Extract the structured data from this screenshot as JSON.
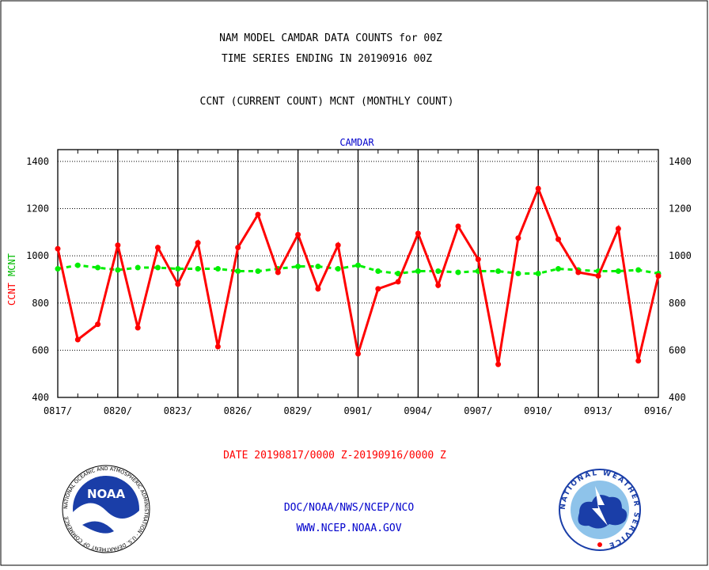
{
  "titles": {
    "line1": "NAM MODEL CAMDAR DATA COUNTS for 00Z",
    "line2": "TIME SERIES ENDING IN 20190916 00Z",
    "line3": "CCNT (CURRENT COUNT) MCNT (MONTHLY COUNT)"
  },
  "footer": {
    "date_range": "DATE 20190817/0000 Z-20190916/0000 Z",
    "org": "DOC/NOAA/NWS/NCEP/NCO",
    "url": "WWW.NCEP.NOAA.GOV"
  },
  "logos": {
    "left": "noaa-logo",
    "left_text": "NOAA",
    "left_ring_text": "NATIONAL OCEANIC AND ATMOSPHERIC ADMINISTRATION · U.S. DEPARTMENT OF COMMERCE",
    "right": "nws-logo",
    "right_ring_text": "NATIONAL WEATHER SERVICE"
  },
  "chart_data": {
    "type": "line",
    "title": "CAMDAR",
    "xlabel": "",
    "ylabel_left": [
      "CCNT",
      "MCNT"
    ],
    "ylim": [
      400,
      1450
    ],
    "y_ticks": [
      400,
      600,
      800,
      1000,
      1200,
      1400
    ],
    "x_tick_labels": [
      "0817/",
      "0820/",
      "0823/",
      "0826/",
      "0829/",
      "0901/",
      "0904/",
      "0907/",
      "0910/",
      "0913/",
      "0916/"
    ],
    "grid": true,
    "colors": {
      "ccnt": "#ff0000",
      "mcnt": "#00ee00",
      "title": "#0000cc"
    },
    "x": [
      "0817",
      "0818",
      "0819",
      "0820",
      "0821",
      "0822",
      "0823",
      "0824",
      "0825",
      "0826",
      "0827",
      "0828",
      "0829",
      "0830",
      "0831",
      "0901",
      "0902",
      "0903",
      "0904",
      "0905",
      "0906",
      "0907",
      "0908",
      "0909",
      "0910",
      "0911",
      "0912",
      "0913",
      "0914",
      "0915",
      "0916"
    ],
    "series": [
      {
        "name": "CCNT",
        "values": [
          1030,
          645,
          710,
          1045,
          695,
          1035,
          880,
          1055,
          615,
          1035,
          1175,
          930,
          1090,
          860,
          1045,
          585,
          860,
          890,
          1095,
          875,
          1125,
          985,
          540,
          1075,
          1285,
          1070,
          930,
          915,
          1115,
          555,
          915
        ]
      },
      {
        "name": "MCNT",
        "values": [
          945,
          960,
          950,
          940,
          950,
          950,
          945,
          945,
          945,
          935,
          935,
          945,
          955,
          955,
          945,
          960,
          935,
          925,
          935,
          935,
          930,
          935,
          935,
          925,
          925,
          945,
          940,
          935,
          935,
          940,
          925
        ]
      }
    ]
  }
}
